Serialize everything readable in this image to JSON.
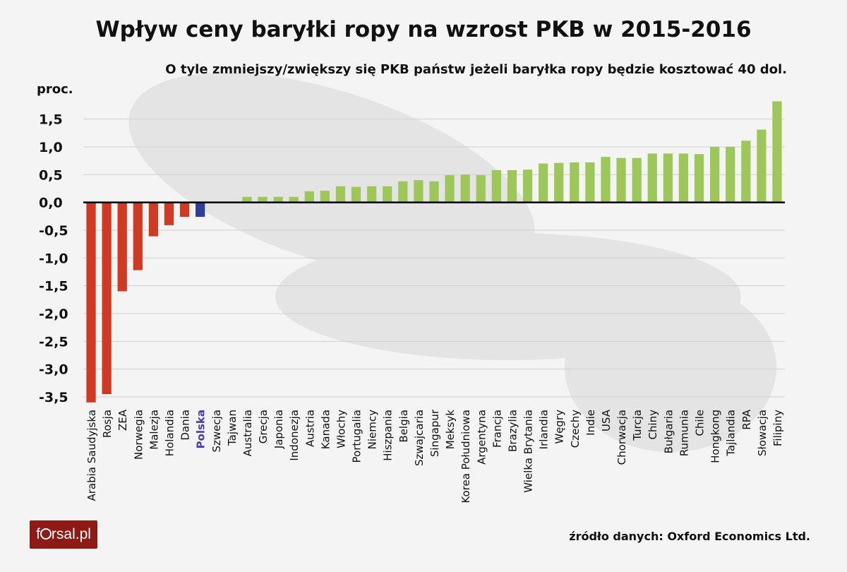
{
  "chart_data": {
    "type": "bar",
    "title": "Wpływ ceny baryłki ropy na wzrost PKB w 2015-2016",
    "subtitle": "O tyle zmniejszy/zwiększy się PKB państw jeżeli baryłka ropy będzie kosztować 40 dol.",
    "ylabel": "proc.",
    "ylim": [
      -3.5,
      1.8
    ],
    "yticks": [
      1.5,
      1.0,
      0.5,
      0.0,
      -0.5,
      -1.0,
      -1.5,
      -2.0,
      -2.5,
      -3.0,
      -3.5
    ],
    "ytick_labels": [
      "1,5",
      "1,0",
      "0,5",
      "0,0",
      "-0,5",
      "-1,0",
      "-1,5",
      "-2,0",
      "-2,5",
      "-3,0",
      "-3,5"
    ],
    "grid": true,
    "categories": [
      "Arabia Saudyjska",
      "Rosja",
      "ZEA",
      "Norwegia",
      "Malezja",
      "Holandia",
      "Dania",
      "Polska",
      "Szwecja",
      "Tajwan",
      "Australia",
      "Grecja",
      "Japonia",
      "Indonezja",
      "Austria",
      "Kanada",
      "Włochy",
      "Portugalia",
      "Niemcy",
      "Hiszpania",
      "Belgia",
      "Szwajcaria",
      "Singapur",
      "Meksyk",
      "Korea Południowa",
      "Argentyna",
      "Francja",
      "Brazylia",
      "Wielka Brytania",
      "Irlandia",
      "Węgry",
      "Czechy",
      "Indie",
      "USA",
      "Chorwacja",
      "Turcja",
      "Chiny",
      "Bułgaria",
      "Rumunia",
      "Chile",
      "Hongkong",
      "Tajlandia",
      "RPA",
      "Słowacja",
      "Filipiny"
    ],
    "values": [
      -3.6,
      -3.45,
      -1.6,
      -1.22,
      -0.61,
      -0.41,
      -0.26,
      -0.26,
      0.0,
      0.0,
      0.1,
      0.1,
      0.1,
      0.1,
      0.2,
      0.21,
      0.29,
      0.28,
      0.29,
      0.29,
      0.38,
      0.4,
      0.38,
      0.49,
      0.5,
      0.49,
      0.58,
      0.58,
      0.59,
      0.7,
      0.71,
      0.72,
      0.72,
      0.82,
      0.8,
      0.8,
      0.88,
      0.88,
      0.88,
      0.87,
      1.0,
      1.0,
      1.11,
      1.31,
      1.82
    ],
    "colors": {
      "negative": "#d03a22",
      "highlight": "#2e3f9a",
      "positive": "#9ec75a",
      "highlight_label": "#4a3bb0"
    },
    "highlight_category": "Polska",
    "source": "źródło danych: Oxford Economics Ltd."
  },
  "logo_text": "forsal.pl"
}
